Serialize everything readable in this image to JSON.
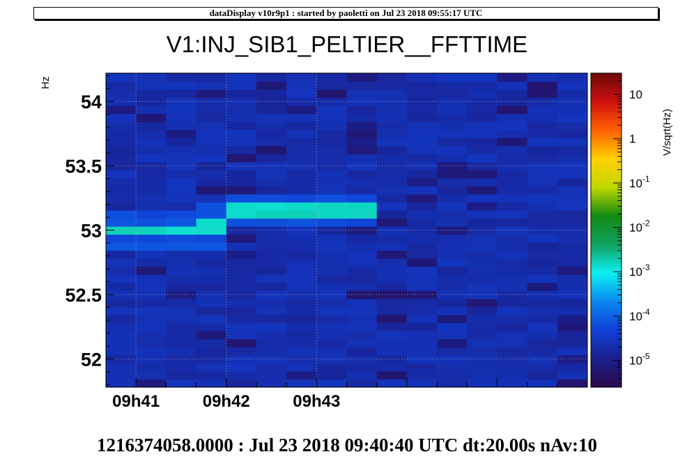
{
  "header": {
    "banner": "dataDisplay v10r9p1 : started by paoletti on Jul 23 2018 09:55:17 UTC"
  },
  "footer": {
    "info": "1216374058.0000 : Jul 23 2018 09:40:40 UTC dt:20.00s nAv:10"
  },
  "chart_data": {
    "type": "heatmap",
    "title": "V1:INJ_SIB1_PELTIER__FFTTIME",
    "ylabel": "Hz",
    "zlabel": "V/sqrt(Hz)",
    "ylim": [
      51.78,
      54.22
    ],
    "y_ticks": [
      {
        "value": 52,
        "label": "52"
      },
      {
        "value": 52.5,
        "label": "52.5"
      },
      {
        "value": 53,
        "label": "53"
      },
      {
        "value": 53.5,
        "label": "53.5"
      },
      {
        "value": 54,
        "label": "54"
      }
    ],
    "x_ticks": [
      {
        "value": "09:41",
        "label": "09h41"
      },
      {
        "value": "09:42",
        "label": "09h42"
      },
      {
        "value": "09:43",
        "label": "09h43"
      }
    ],
    "x_start": "09:40:40",
    "dt_seconds": 20,
    "columns": 16,
    "row_height_hz": 0.0625,
    "zlim": [
      2.5e-06,
      30
    ],
    "z_scale": "log",
    "z_ticks": [
      {
        "value": 1e-05,
        "base": "10",
        "exp": "-5"
      },
      {
        "value": 0.0001,
        "base": "10",
        "exp": "-4"
      },
      {
        "value": 0.001,
        "base": "10",
        "exp": "-3"
      },
      {
        "value": 0.01,
        "base": "10",
        "exp": "-2"
      },
      {
        "value": 0.1,
        "base": "10",
        "exp": "-1"
      },
      {
        "value": 1,
        "base": "1",
        "exp": ""
      },
      {
        "value": 10,
        "base": "10",
        "exp": ""
      }
    ],
    "colormap": [
      "#2d0a4e",
      "#1a1f8c",
      "#1040d8",
      "#0a88f0",
      "#0cf0f0",
      "#11a060",
      "#128a12",
      "#c0d800",
      "#ffd000",
      "#ff6000",
      "#d01010",
      "#6a0808"
    ],
    "background_level": [
      1.5e-05,
      3e-05
    ],
    "lines": [
      {
        "name": "",
        "from": "09:40:40",
        "to": "09:41:40",
        "freq_low": 52.95,
        "freq_high": 53.05,
        "level": 0.0015
      },
      {
        "name": "",
        "from": "09:41:40",
        "to": "09:42:00",
        "freq_low": 52.95,
        "freq_high": 53.12,
        "level": 0.0012
      },
      {
        "name": "",
        "from": "09:42:00",
        "to": "09:43:40",
        "freq_low": 53.1,
        "freq_high": 53.22,
        "level": 0.0015
      }
    ]
  }
}
